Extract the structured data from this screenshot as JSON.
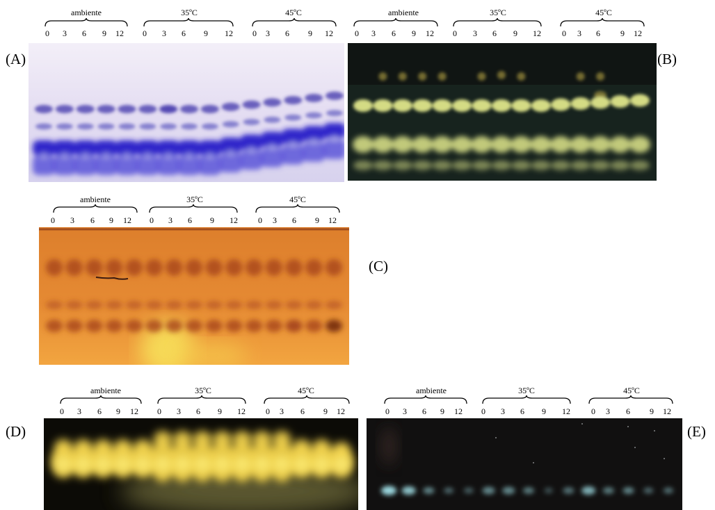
{
  "panels": [
    {
      "letter": "(A)",
      "groups": [
        {
          "label": "ambiente",
          "lanes": [
            "0",
            "3",
            "6",
            "9",
            "12"
          ]
        },
        {
          "label": "35ºC",
          "lanes": [
            "0",
            "3",
            "6",
            "9",
            "12"
          ]
        },
        {
          "label": "45ºC",
          "lanes": [
            "0",
            "3",
            "6",
            "9",
            "12"
          ]
        }
      ],
      "stain": "coomassie-blue"
    },
    {
      "letter": "(B)",
      "groups": [
        {
          "label": "ambiente",
          "lanes": [
            "0",
            "3",
            "6",
            "9",
            "12"
          ]
        },
        {
          "label": "35ºC",
          "lanes": [
            "0",
            "3",
            "6",
            "9",
            "12"
          ]
        },
        {
          "label": "45ºC",
          "lanes": [
            "0",
            "3",
            "6",
            "9",
            "12"
          ]
        }
      ],
      "stain": "yellow-fluorescent"
    },
    {
      "letter": "(C)",
      "groups": [
        {
          "label": "ambiente",
          "lanes": [
            "0",
            "3",
            "6",
            "9",
            "12"
          ]
        },
        {
          "label": "35ºC",
          "lanes": [
            "0",
            "3",
            "6",
            "9",
            "12"
          ]
        },
        {
          "label": "45ºC",
          "lanes": [
            "0",
            "3",
            "6",
            "9",
            "12"
          ]
        }
      ],
      "stain": "orange-activity"
    },
    {
      "letter": "(D)",
      "groups": [
        {
          "label": "ambiente",
          "lanes": [
            "0",
            "3",
            "6",
            "9",
            "12"
          ]
        },
        {
          "label": "35ºC",
          "lanes": [
            "0",
            "3",
            "6",
            "9",
            "12"
          ]
        },
        {
          "label": "45ºC",
          "lanes": [
            "0",
            "3",
            "6",
            "9",
            "12"
          ]
        }
      ],
      "stain": "yellow-activity"
    },
    {
      "letter": "(E)",
      "groups": [
        {
          "label": "ambiente",
          "lanes": [
            "0",
            "3",
            "6",
            "9",
            "12"
          ]
        },
        {
          "label": "35ºC",
          "lanes": [
            "0",
            "3",
            "6",
            "9",
            "12"
          ]
        },
        {
          "label": "45ºC",
          "lanes": [
            "0",
            "3",
            "6",
            "9",
            "12"
          ]
        }
      ],
      "stain": "dark-fluorescent"
    }
  ]
}
